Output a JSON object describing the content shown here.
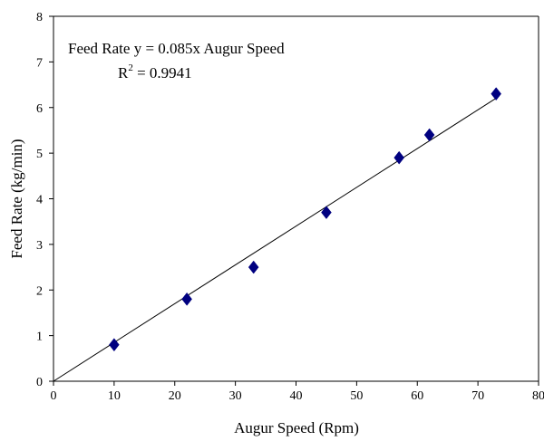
{
  "chart_data": {
    "type": "scatter",
    "xlabel": "Augur Speed (Rpm)",
    "ylabel": "Feed Rate (kg/min)",
    "xlim": [
      0,
      80
    ],
    "ylim": [
      0,
      8
    ],
    "xticks": [
      "0",
      "10",
      "20",
      "30",
      "40",
      "50",
      "60",
      "70",
      "80"
    ],
    "yticks": [
      "0",
      "1",
      "2",
      "3",
      "4",
      "5",
      "6",
      "7",
      "8"
    ],
    "grid": false,
    "legend": "none",
    "series": [
      {
        "marker": "diamond",
        "color": "#000080",
        "points": [
          {
            "x": 10,
            "y": 0.8
          },
          {
            "x": 22,
            "y": 1.8
          },
          {
            "x": 33,
            "y": 2.5
          },
          {
            "x": 45,
            "y": 3.7
          },
          {
            "x": 57,
            "y": 4.9
          },
          {
            "x": 62,
            "y": 5.4
          },
          {
            "x": 73,
            "y": 6.3
          }
        ]
      }
    ],
    "trendline": {
      "slope": 0.085,
      "intercept": 0,
      "x_range": [
        0,
        73
      ],
      "color": "#000000"
    },
    "annotations": {
      "equation": "Feed Rate y = 0.085x Augur Speed",
      "r2_label": "R",
      "r2_exponent": "2",
      "r2_value": " = 0.9941"
    }
  }
}
